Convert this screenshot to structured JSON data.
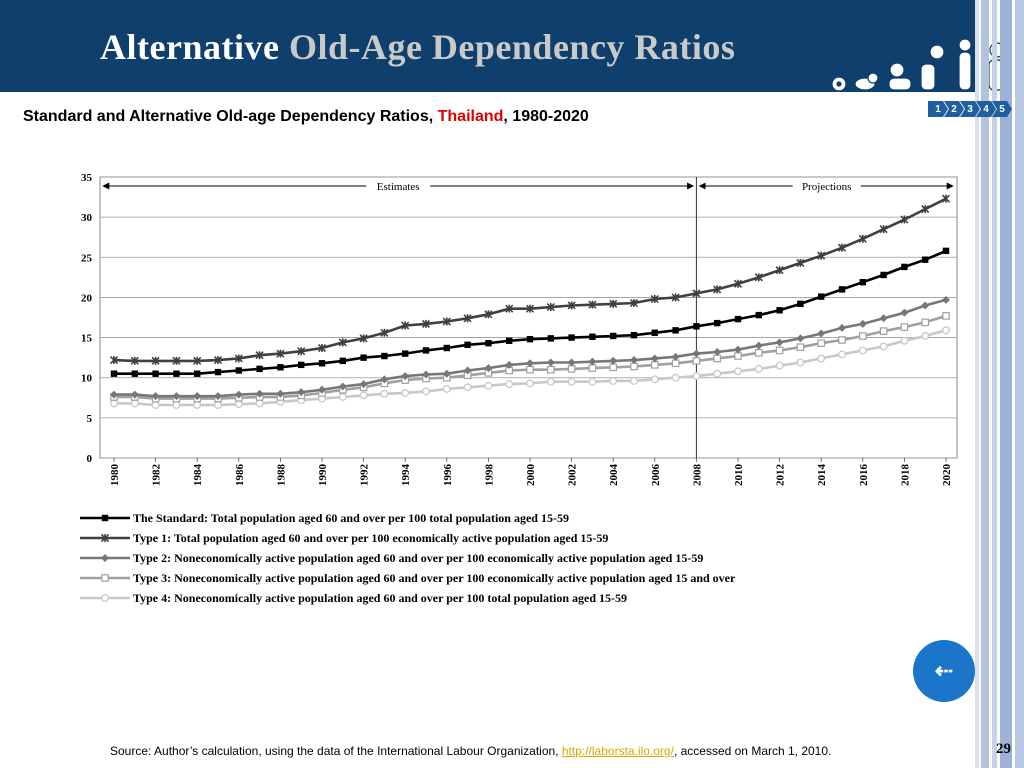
{
  "slide": {
    "title_main": "Alternative",
    "title_rest": "Old-Age Dependency Ratios",
    "subtitle_prefix": "Standard and Alternative Old-age Dependency Ratios,",
    "subtitle_country": "Thailand",
    "subtitle_suffix": ", 1980-2020",
    "pager": [
      "1",
      "2",
      "3",
      "4",
      "5"
    ],
    "back_button_label": "⇠",
    "source_prefix": "Source: Author’s calculation, using the data of the International Labour Organization,",
    "source_link": "http://laborsta.ilo.org/",
    "source_suffix": ", accessed on March 1, 2010.",
    "page_number": "29",
    "colors": {
      "banner": "#0f3f6c",
      "accent_red": "#e00000",
      "link": "#d5a800",
      "button": "#1b75c9"
    }
  },
  "chart_data": {
    "type": "line",
    "title": "",
    "xlabel": "",
    "ylabel": "",
    "x_ticks": [
      "1980",
      "1982",
      "1984",
      "1986",
      "1988",
      "1990",
      "1992",
      "1994",
      "1996",
      "1998",
      "2000",
      "2002",
      "2004",
      "2006",
      "2008",
      "2010",
      "2012",
      "2014",
      "2016",
      "2018",
      "2020"
    ],
    "ylim": [
      0,
      35
    ],
    "y_ticks": [
      "0",
      "5",
      "10",
      "15",
      "20",
      "25",
      "30",
      "35"
    ],
    "grid": "horizontal",
    "legend_position": "bottom",
    "annotations": {
      "estimates": "Estimates",
      "projections": "Projections",
      "divider_year": 2008
    },
    "series": [
      {
        "name": "The Standard: Total population aged 60 and over per 100 total population aged 15-59",
        "color": "#000000",
        "marker": "square",
        "start_year": 1980,
        "values": [
          10.5,
          10.5,
          10.5,
          10.5,
          10.5,
          10.7,
          10.9,
          11.1,
          11.3,
          11.6,
          11.8,
          12.1,
          12.5,
          12.7,
          13.0,
          13.4,
          13.7,
          14.1,
          14.3,
          14.6,
          14.8,
          14.9,
          15.0,
          15.1,
          15.2,
          15.3,
          15.6,
          15.9,
          16.4,
          16.8,
          17.3,
          17.8,
          18.4,
          19.2,
          20.1,
          21.0,
          21.9,
          22.8,
          23.8,
          24.7,
          25.8
        ]
      },
      {
        "name": "Type 1: Total population aged 60 and over per 100 economically active population aged 15-59",
        "color": "#404040",
        "marker": "star",
        "start_year": 1980,
        "values": [
          12.2,
          12.1,
          12.1,
          12.1,
          12.1,
          12.2,
          12.4,
          12.8,
          13.0,
          13.3,
          13.7,
          14.4,
          14.9,
          15.6,
          16.5,
          16.7,
          17.0,
          17.4,
          17.9,
          18.6,
          18.6,
          18.8,
          19.0,
          19.1,
          19.2,
          19.3,
          19.8,
          20.0,
          20.5,
          21.0,
          21.7,
          22.5,
          23.4,
          24.3,
          25.2,
          26.2,
          27.3,
          28.5,
          29.7,
          31.0,
          32.3
        ]
      },
      {
        "name": "Type 2: Noneconomically active population aged 60 and over per 100 economically active population aged 15-59",
        "color": "#777777",
        "marker": "diamond",
        "start_year": 1980,
        "values": [
          7.9,
          7.9,
          7.7,
          7.7,
          7.7,
          7.7,
          7.9,
          8.0,
          8.0,
          8.2,
          8.5,
          8.9,
          9.2,
          9.8,
          10.2,
          10.4,
          10.5,
          10.9,
          11.2,
          11.6,
          11.8,
          11.9,
          11.9,
          12.0,
          12.1,
          12.2,
          12.4,
          12.6,
          13.0,
          13.2,
          13.5,
          14.0,
          14.4,
          14.9,
          15.5,
          16.2,
          16.7,
          17.4,
          18.1,
          19.0,
          19.7
        ]
      },
      {
        "name": "Type 3: Noneconomically active population aged 60 and over per 100 economically active population aged 15 and over",
        "color": "#a0a0a0",
        "marker": "square-open",
        "start_year": 1980,
        "values": [
          7.6,
          7.6,
          7.4,
          7.4,
          7.4,
          7.4,
          7.5,
          7.6,
          7.6,
          7.8,
          8.1,
          8.5,
          8.8,
          9.3,
          9.7,
          9.9,
          10.0,
          10.3,
          10.6,
          10.9,
          11.0,
          11.0,
          11.1,
          11.2,
          11.3,
          11.4,
          11.6,
          11.8,
          12.1,
          12.4,
          12.7,
          13.1,
          13.4,
          13.8,
          14.3,
          14.7,
          15.2,
          15.8,
          16.3,
          16.9,
          17.7
        ]
      },
      {
        "name": "Type 4: Noneconomically active population aged 60 and over per 100 total population aged 15-59",
        "color": "#c8c8c8",
        "marker": "circle",
        "start_year": 1980,
        "values": [
          6.8,
          6.8,
          6.6,
          6.6,
          6.6,
          6.6,
          6.7,
          6.8,
          7.0,
          7.2,
          7.4,
          7.6,
          7.8,
          8.0,
          8.1,
          8.3,
          8.6,
          8.8,
          9.0,
          9.2,
          9.3,
          9.5,
          9.5,
          9.5,
          9.6,
          9.6,
          9.8,
          10.0,
          10.2,
          10.5,
          10.8,
          11.1,
          11.5,
          11.9,
          12.4,
          12.9,
          13.4,
          13.9,
          14.6,
          15.2,
          15.9
        ]
      }
    ]
  }
}
